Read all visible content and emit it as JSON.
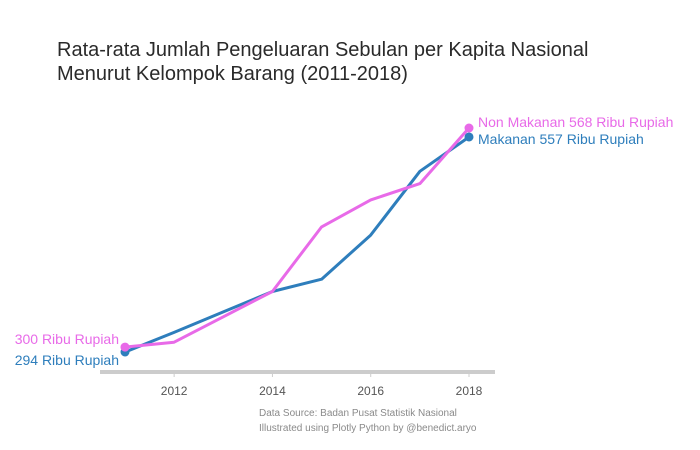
{
  "chart_data": {
    "type": "line",
    "title_line1": "Rata-rata Jumlah Pengeluaran Sebulan per Kapita Nasional",
    "title_line2": "Menurut Kelompok Barang (2011-2018)",
    "xlabel": "",
    "ylabel": "",
    "x": [
      2011,
      2012,
      2013,
      2014,
      2015,
      2016,
      2017,
      2018
    ],
    "xlim": [
      2010.5,
      2018.5
    ],
    "ylim": [
      280,
      590
    ],
    "x_ticks": [
      "2012",
      "2014",
      "2016",
      "2018"
    ],
    "grid": false,
    "legend": "none",
    "series": [
      {
        "name": "Makanan",
        "color": "#2e7ebc",
        "values": [
          294,
          318,
          343,
          368,
          383,
          437,
          515,
          557
        ],
        "start_label": "294 Ribu Rupiah",
        "end_label": "Makanan 557 Ribu Rupiah"
      },
      {
        "name": "Non Makanan",
        "color": "#e86ae8",
        "values": [
          300,
          306,
          337,
          368,
          447,
          480,
          500,
          568
        ],
        "start_label": "300 Ribu Rupiah",
        "end_label": "Non Makanan 568 Ribu Rupiah"
      }
    ],
    "source_line1": "Data Source: Badan Pusat Statistik Nasional",
    "source_line2": "Illustrated using Plotly Python by @benedict.aryo"
  }
}
